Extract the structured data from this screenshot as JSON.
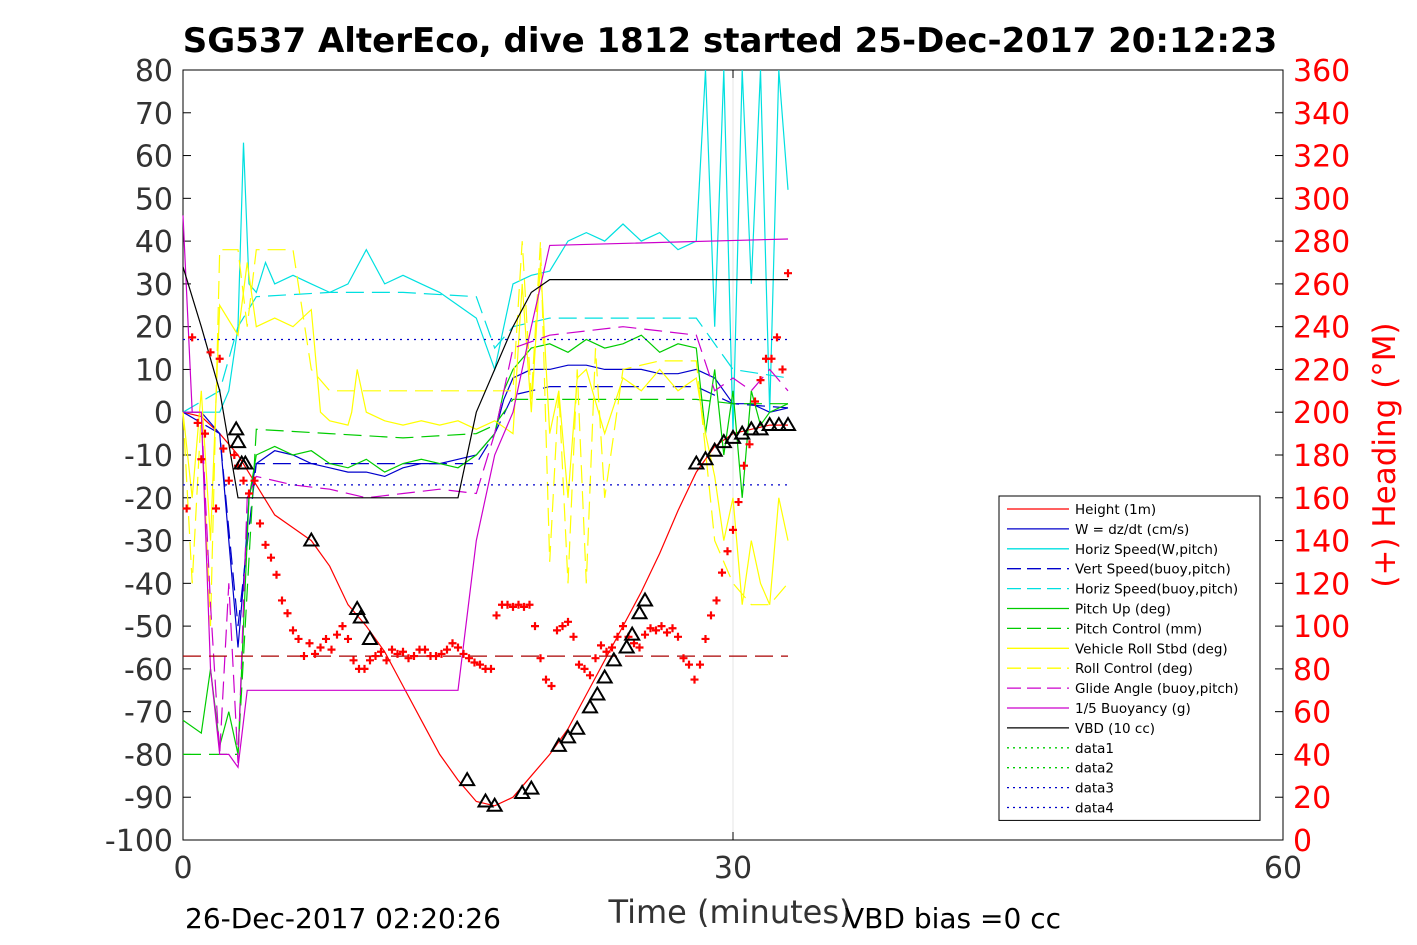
{
  "chart_data": {
    "type": "line",
    "title": "SG537 AlterEco, dive 1812 started 25-Dec-2017 20:12:23",
    "xlabel": "Time (minutes)",
    "ylabel_right": "(+) Heading (°M)",
    "footer_left": "26-Dec-2017 02:20:26",
    "footer_right": "VBD bias =0 cc",
    "xlim": [
      0,
      60
    ],
    "ylim": [
      -100,
      80
    ],
    "ylim_right": [
      0,
      360
    ],
    "xticks": [
      "0",
      "30",
      "60"
    ],
    "xtick_values": [
      0,
      30,
      60
    ],
    "yticks": [
      "80",
      "70",
      "60",
      "50",
      "40",
      "30",
      "20",
      "10",
      "0",
      "-10",
      "-20",
      "-30",
      "-40",
      "-50",
      "-60",
      "-70",
      "-80",
      "-90",
      "-100"
    ],
    "ytick_values": [
      80,
      70,
      60,
      50,
      40,
      30,
      20,
      10,
      0,
      -10,
      -20,
      -30,
      -40,
      -50,
      -60,
      -70,
      -80,
      -90,
      -100
    ],
    "yticks_right": [
      "360",
      "340",
      "320",
      "300",
      "280",
      "260",
      "240",
      "220",
      "200",
      "180",
      "160",
      "140",
      "120",
      "100",
      "80",
      "60",
      "40",
      "20",
      "0"
    ],
    "ytick_right_values": [
      360,
      340,
      320,
      300,
      280,
      260,
      240,
      220,
      200,
      180,
      160,
      140,
      120,
      100,
      80,
      60,
      40,
      20,
      0
    ],
    "grid": "x-only",
    "legend_position": "lower-right",
    "legend": [
      {
        "label": "Height (1m)",
        "color": "#ff0000",
        "style": "solid"
      },
      {
        "label": "W = dz/dt (cm/s)",
        "color": "#0000cc",
        "style": "solid"
      },
      {
        "label": "Horiz Speed(W,pitch)",
        "color": "#00e0e0",
        "style": "solid"
      },
      {
        "label": "Vert Speed(buoy,pitch)",
        "color": "#0000cc",
        "style": "dashed"
      },
      {
        "label": "Horiz Speed(buoy,pitch)",
        "color": "#00e0e0",
        "style": "dashed"
      },
      {
        "label": "Pitch Up (deg)",
        "color": "#00cc00",
        "style": "solid"
      },
      {
        "label": "Pitch Control (mm)",
        "color": "#00cc00",
        "style": "dashed"
      },
      {
        "label": "Vehicle Roll Stbd (deg)",
        "color": "#ffff00",
        "style": "solid"
      },
      {
        "label": "Roll Control (deg)",
        "color": "#ffff00",
        "style": "dashed"
      },
      {
        "label": "Glide Angle (buoy,pitch)",
        "color": "#cc00cc",
        "style": "dashed"
      },
      {
        "label": "1/5 Buoyancy (g)",
        "color": "#cc00cc",
        "style": "solid"
      },
      {
        "label": "VBD (10 cc)",
        "color": "#000000",
        "style": "solid"
      },
      {
        "label": "data1",
        "color": "#00cc00",
        "style": "dotted"
      },
      {
        "label": "data2",
        "color": "#00cc00",
        "style": "dotted"
      },
      {
        "label": "data3",
        "color": "#0000cc",
        "style": "dotted"
      },
      {
        "label": "data4",
        "color": "#0000cc",
        "style": "dotted"
      }
    ],
    "series": [
      {
        "name": "Height (1m)",
        "color": "#ff0000",
        "style": "solid",
        "x": [
          0,
          1,
          2,
          3,
          4,
          5,
          6,
          7,
          8,
          9,
          10,
          11,
          12,
          13,
          14,
          15,
          16,
          17,
          18,
          19,
          20,
          21,
          22,
          23,
          24,
          25,
          26,
          27,
          28,
          29,
          30,
          31,
          32,
          33
        ],
        "y": [
          0,
          -1,
          -5,
          -10,
          -17,
          -24,
          -27,
          -30,
          -36,
          -45,
          -50,
          -56,
          -64,
          -72,
          -80,
          -86,
          -91,
          -92,
          -90,
          -85,
          -80,
          -74,
          -66,
          -58,
          -50,
          -42,
          -33,
          -23,
          -14,
          -8,
          -5,
          -4,
          -3,
          -3
        ]
      },
      {
        "name": "W = dz/dt (cm/s)",
        "color": "#0000cc",
        "style": "solid",
        "x": [
          0,
          1,
          2,
          2.5,
          3,
          3.3,
          3.6,
          4,
          5,
          6,
          7,
          8,
          9,
          10,
          11,
          12,
          13,
          14,
          15,
          16,
          17,
          17.5,
          18,
          19,
          20,
          21,
          22,
          23,
          24,
          25,
          26,
          27,
          28,
          29,
          30,
          31,
          32,
          33
        ],
        "y": [
          0,
          0,
          -5,
          -30,
          -55,
          -40,
          -20,
          -12,
          -9,
          -10,
          -12,
          -13,
          -14,
          -14,
          -15,
          -13,
          -12,
          -12,
          -11,
          -10,
          -5,
          3,
          8,
          10,
          10,
          11,
          11,
          10,
          10,
          10,
          9,
          9,
          10,
          8,
          2,
          2,
          0,
          1
        ]
      },
      {
        "name": "Horiz Speed(W,pitch)",
        "color": "#00e0e0",
        "style": "solid",
        "x": [
          0,
          1,
          2,
          2.5,
          3,
          3.3,
          3.6,
          4,
          4.5,
          5,
          6,
          7,
          8,
          9,
          10,
          11,
          12,
          13,
          14,
          15,
          16,
          17,
          17.5,
          18,
          19,
          20,
          21,
          22,
          23,
          24,
          25,
          26,
          27,
          28,
          28.5,
          29,
          29.5,
          30,
          30.5,
          31,
          31.5,
          32,
          32.5,
          33
        ],
        "y": [
          0,
          0,
          0,
          5,
          20,
          63,
          30,
          28,
          35,
          30,
          32,
          30,
          28,
          30,
          38,
          30,
          32,
          30,
          28,
          25,
          22,
          10,
          20,
          30,
          32,
          33,
          40,
          42,
          40,
          44,
          40,
          42,
          38,
          40,
          80,
          20,
          80,
          -5,
          80,
          30,
          80,
          0,
          80,
          52
        ]
      },
      {
        "name": "Vert Speed(buoy,pitch)",
        "color": "#0000cc",
        "style": "dashed",
        "x": [
          0,
          2,
          3,
          4,
          8,
          12,
          16,
          17,
          18,
          20,
          24,
          28,
          30,
          33
        ],
        "y": [
          0,
          -5,
          -50,
          -12,
          -12,
          -12,
          -12,
          -5,
          4,
          6,
          6,
          6,
          2,
          1
        ]
      },
      {
        "name": "Horiz Speed(buoy,pitch)",
        "color": "#00e0e0",
        "style": "dashed",
        "x": [
          0,
          2,
          3,
          4,
          8,
          12,
          16,
          17,
          18,
          20,
          24,
          28,
          30,
          33
        ],
        "y": [
          0,
          5,
          20,
          27,
          28,
          28,
          27,
          15,
          20,
          22,
          22,
          22,
          10,
          8
        ]
      },
      {
        "name": "Pitch Up (deg)",
        "color": "#00cc00",
        "style": "solid",
        "x": [
          0,
          1,
          1.5,
          2,
          2.5,
          3,
          3.3,
          3.6,
          4,
          5,
          6,
          7,
          8,
          9,
          10,
          11,
          12,
          13,
          14,
          15,
          16,
          17,
          17.5,
          18,
          19,
          20,
          21,
          22,
          23,
          24,
          25,
          26,
          27,
          28,
          28.5,
          29,
          29.5,
          30,
          30.5,
          31,
          31.5,
          32,
          33
        ],
        "y": [
          -72,
          -75,
          -60,
          -78,
          -70,
          -80,
          -50,
          -20,
          -10,
          -8,
          -10,
          -9,
          -12,
          -13,
          -11,
          -14,
          -12,
          -11,
          -12,
          -13,
          -10,
          -5,
          5,
          10,
          15,
          16,
          14,
          17,
          15,
          16,
          18,
          14,
          16,
          15,
          -5,
          10,
          -10,
          5,
          -20,
          5,
          -3,
          0,
          2
        ]
      },
      {
        "name": "Pitch Control (mm)",
        "color": "#00cc00",
        "style": "dashed",
        "x": [
          0,
          2,
          3,
          4,
          8,
          12,
          16,
          17,
          18,
          20,
          24,
          28,
          30,
          33
        ],
        "y": [
          -80,
          -80,
          -80,
          -4,
          -5,
          -6,
          -5,
          -3,
          3,
          3,
          3,
          3,
          2,
          2
        ]
      },
      {
        "name": "Vehicle Roll Stbd (deg)",
        "color": "#ffff00",
        "style": "solid",
        "x": [
          0,
          0.5,
          1,
          1.5,
          2,
          3,
          3.5,
          4,
          5,
          6,
          7,
          7.5,
          8,
          9,
          9.2,
          9.5,
          10,
          11,
          12,
          13,
          14,
          15,
          16,
          17,
          18,
          18.5,
          19,
          19.5,
          20,
          20.5,
          21,
          21.5,
          22,
          23,
          24,
          25,
          26,
          27,
          28,
          28.5,
          29,
          29.5,
          30,
          30.5,
          31,
          31.5,
          32,
          32.5,
          33
        ],
        "y": [
          0,
          -20,
          5,
          -30,
          25,
          18,
          35,
          20,
          22,
          20,
          24,
          0,
          -2,
          -3,
          0,
          10,
          0,
          -2,
          -3,
          -2,
          -3,
          -2,
          -4,
          -2,
          -5,
          30,
          0,
          35,
          -5,
          5,
          -20,
          8,
          10,
          -5,
          8,
          5,
          10,
          5,
          8,
          -5,
          -15,
          -30,
          -20,
          -45,
          -30,
          -40,
          -45,
          -20,
          -30
        ]
      },
      {
        "name": "Roll Control (deg)",
        "color": "#ffff00",
        "style": "dashed",
        "x": [
          0,
          0.5,
          1,
          1.5,
          2,
          3,
          3.5,
          4,
          6,
          7,
          8,
          10,
          12,
          14,
          16,
          18,
          18.5,
          19,
          19.5,
          20,
          20.5,
          21,
          21.5,
          22,
          22.5,
          23,
          24,
          26,
          28,
          29,
          30,
          31,
          32,
          33
        ],
        "y": [
          0,
          -40,
          0,
          -50,
          38,
          38,
          20,
          38,
          38,
          10,
          5,
          5,
          5,
          5,
          5,
          5,
          40,
          3,
          40,
          -35,
          5,
          -40,
          10,
          -40,
          15,
          -20,
          10,
          12,
          12,
          -30,
          -40,
          -45,
          -45,
          -40
        ]
      },
      {
        "name": "Glide Angle (buoy,pitch)",
        "color": "#cc00cc",
        "style": "dashed",
        "x": [
          0,
          1,
          1.5,
          2,
          2.5,
          3,
          3.5,
          4,
          6,
          8,
          10,
          12,
          14,
          16,
          17,
          18,
          20,
          22,
          24,
          26,
          28,
          29,
          30,
          31,
          32,
          33
        ],
        "y": [
          0,
          0,
          -45,
          -80,
          -40,
          -82,
          -20,
          -15,
          -17,
          -18,
          -20,
          -19,
          -18,
          -19,
          -5,
          15,
          18,
          19,
          20,
          19,
          18,
          5,
          8,
          5,
          10,
          5
        ]
      },
      {
        "name": "1/5 Buoyancy (g)",
        "color": "#cc00cc",
        "style": "solid",
        "x": [
          0,
          0.5,
          1,
          1.5,
          2,
          2.5,
          3,
          3.5,
          4,
          15,
          16,
          17,
          18,
          19,
          20,
          33
        ],
        "y": [
          46,
          0,
          0,
          -60,
          -80,
          -80,
          -83,
          -65,
          -65,
          -65,
          -30,
          -10,
          0,
          20,
          39,
          40.5
        ]
      },
      {
        "name": "VBD (10 cc)",
        "color": "#000000",
        "style": "solid",
        "x": [
          0,
          1,
          2,
          3,
          15,
          16,
          17,
          18,
          19,
          20,
          33
        ],
        "y": [
          34,
          20,
          5,
          -20,
          -20,
          0,
          10,
          20,
          28,
          31,
          31
        ]
      },
      {
        "name": "data1",
        "color": "#0000cc",
        "style": "dotted",
        "x": [
          0,
          33
        ],
        "y": [
          17,
          17
        ]
      },
      {
        "name": "data4",
        "color": "#0000cc",
        "style": "dotted",
        "x": [
          0,
          33
        ],
        "y": [
          -17,
          -17
        ]
      },
      {
        "name": "Heading reference",
        "color": "#aa0000",
        "style": "dashed",
        "x": [
          0,
          33
        ],
        "y": [
          -57,
          -57
        ]
      }
    ],
    "heading_points": {
      "color": "#ff0000",
      "x": [
        0.2,
        0.5,
        0.8,
        1.0,
        1.2,
        1.5,
        1.8,
        2.0,
        2.2,
        2.5,
        2.8,
        3.0,
        3.3,
        3.6,
        3.9,
        4.2,
        4.5,
        4.8,
        5.1,
        5.4,
        5.7,
        6.0,
        6.3,
        6.6,
        6.9,
        7.2,
        7.5,
        7.8,
        8.1,
        8.4,
        8.7,
        9.0,
        9.3,
        9.6,
        9.9,
        10.2,
        10.5,
        10.8,
        11.1,
        11.4,
        11.7,
        12.0,
        12.3,
        12.6,
        12.9,
        13.2,
        13.5,
        13.8,
        14.1,
        14.4,
        14.7,
        15.0,
        15.3,
        15.6,
        15.9,
        16.2,
        16.5,
        16.8,
        17.1,
        17.4,
        17.7,
        18.0,
        18.3,
        18.6,
        18.9,
        19.2,
        19.5,
        19.8,
        20.1,
        20.4,
        20.7,
        21.0,
        21.3,
        21.6,
        21.9,
        22.2,
        22.5,
        22.8,
        23.1,
        23.4,
        23.7,
        24.0,
        24.3,
        24.6,
        24.9,
        25.2,
        25.5,
        25.8,
        26.1,
        26.4,
        26.7,
        27.0,
        27.3,
        27.6,
        27.9,
        28.2,
        28.5,
        28.8,
        29.1,
        29.4,
        29.7,
        30.0,
        30.3,
        30.6,
        30.9,
        31.2,
        31.5,
        31.8,
        32.1,
        32.4,
        32.7,
        33.0
      ],
      "y": [
        155,
        235,
        195,
        178,
        190,
        228,
        155,
        225,
        183,
        168,
        180,
        175,
        168,
        162,
        168,
        148,
        138,
        132,
        124,
        112,
        106,
        98,
        94,
        86,
        92,
        87,
        90,
        94,
        89,
        96,
        100,
        94,
        84,
        80,
        80,
        84,
        86,
        88,
        84,
        89,
        87,
        88,
        85,
        86,
        89,
        89,
        86,
        86,
        87,
        89,
        92,
        90,
        87,
        85,
        83,
        82,
        80,
        80,
        105,
        110,
        110,
        109,
        110,
        109,
        110,
        100,
        85,
        75,
        72,
        98,
        100,
        102,
        95,
        82,
        80,
        77,
        85,
        91,
        88,
        90,
        95,
        100,
        95,
        92,
        90,
        96,
        99,
        98,
        100,
        97,
        99,
        95,
        85,
        82,
        75,
        82,
        94,
        105,
        112,
        125,
        135,
        145,
        158,
        175,
        185,
        205,
        215,
        225,
        225,
        235,
        220,
        265
      ]
    },
    "markers": {
      "color": "#000000",
      "shape": "triangle",
      "x": [
        2.9,
        3.0,
        3.2,
        3.4,
        7.0,
        9.5,
        9.7,
        10.2,
        15.5,
        16.5,
        17.0,
        18.5,
        19.0,
        20.5,
        21.0,
        21.5,
        22.2,
        22.6,
        23.0,
        23.5,
        24.2,
        24.5,
        24.9,
        25.2,
        28.0,
        28.5,
        29.0,
        29.5,
        30.0,
        30.5,
        31.0,
        31.5,
        32.0,
        32.5,
        33.0
      ],
      "y": [
        -4,
        -7,
        -12,
        -12,
        -30,
        -46,
        -48,
        -53,
        -86,
        -91,
        -92,
        -89,
        -88,
        -78,
        -76,
        -74,
        -69,
        -66,
        -62,
        -58,
        -55,
        -52,
        -47,
        -44,
        -12,
        -11,
        -9,
        -7,
        -6,
        -5,
        -4,
        -4,
        -3,
        -3,
        -3
      ]
    }
  }
}
